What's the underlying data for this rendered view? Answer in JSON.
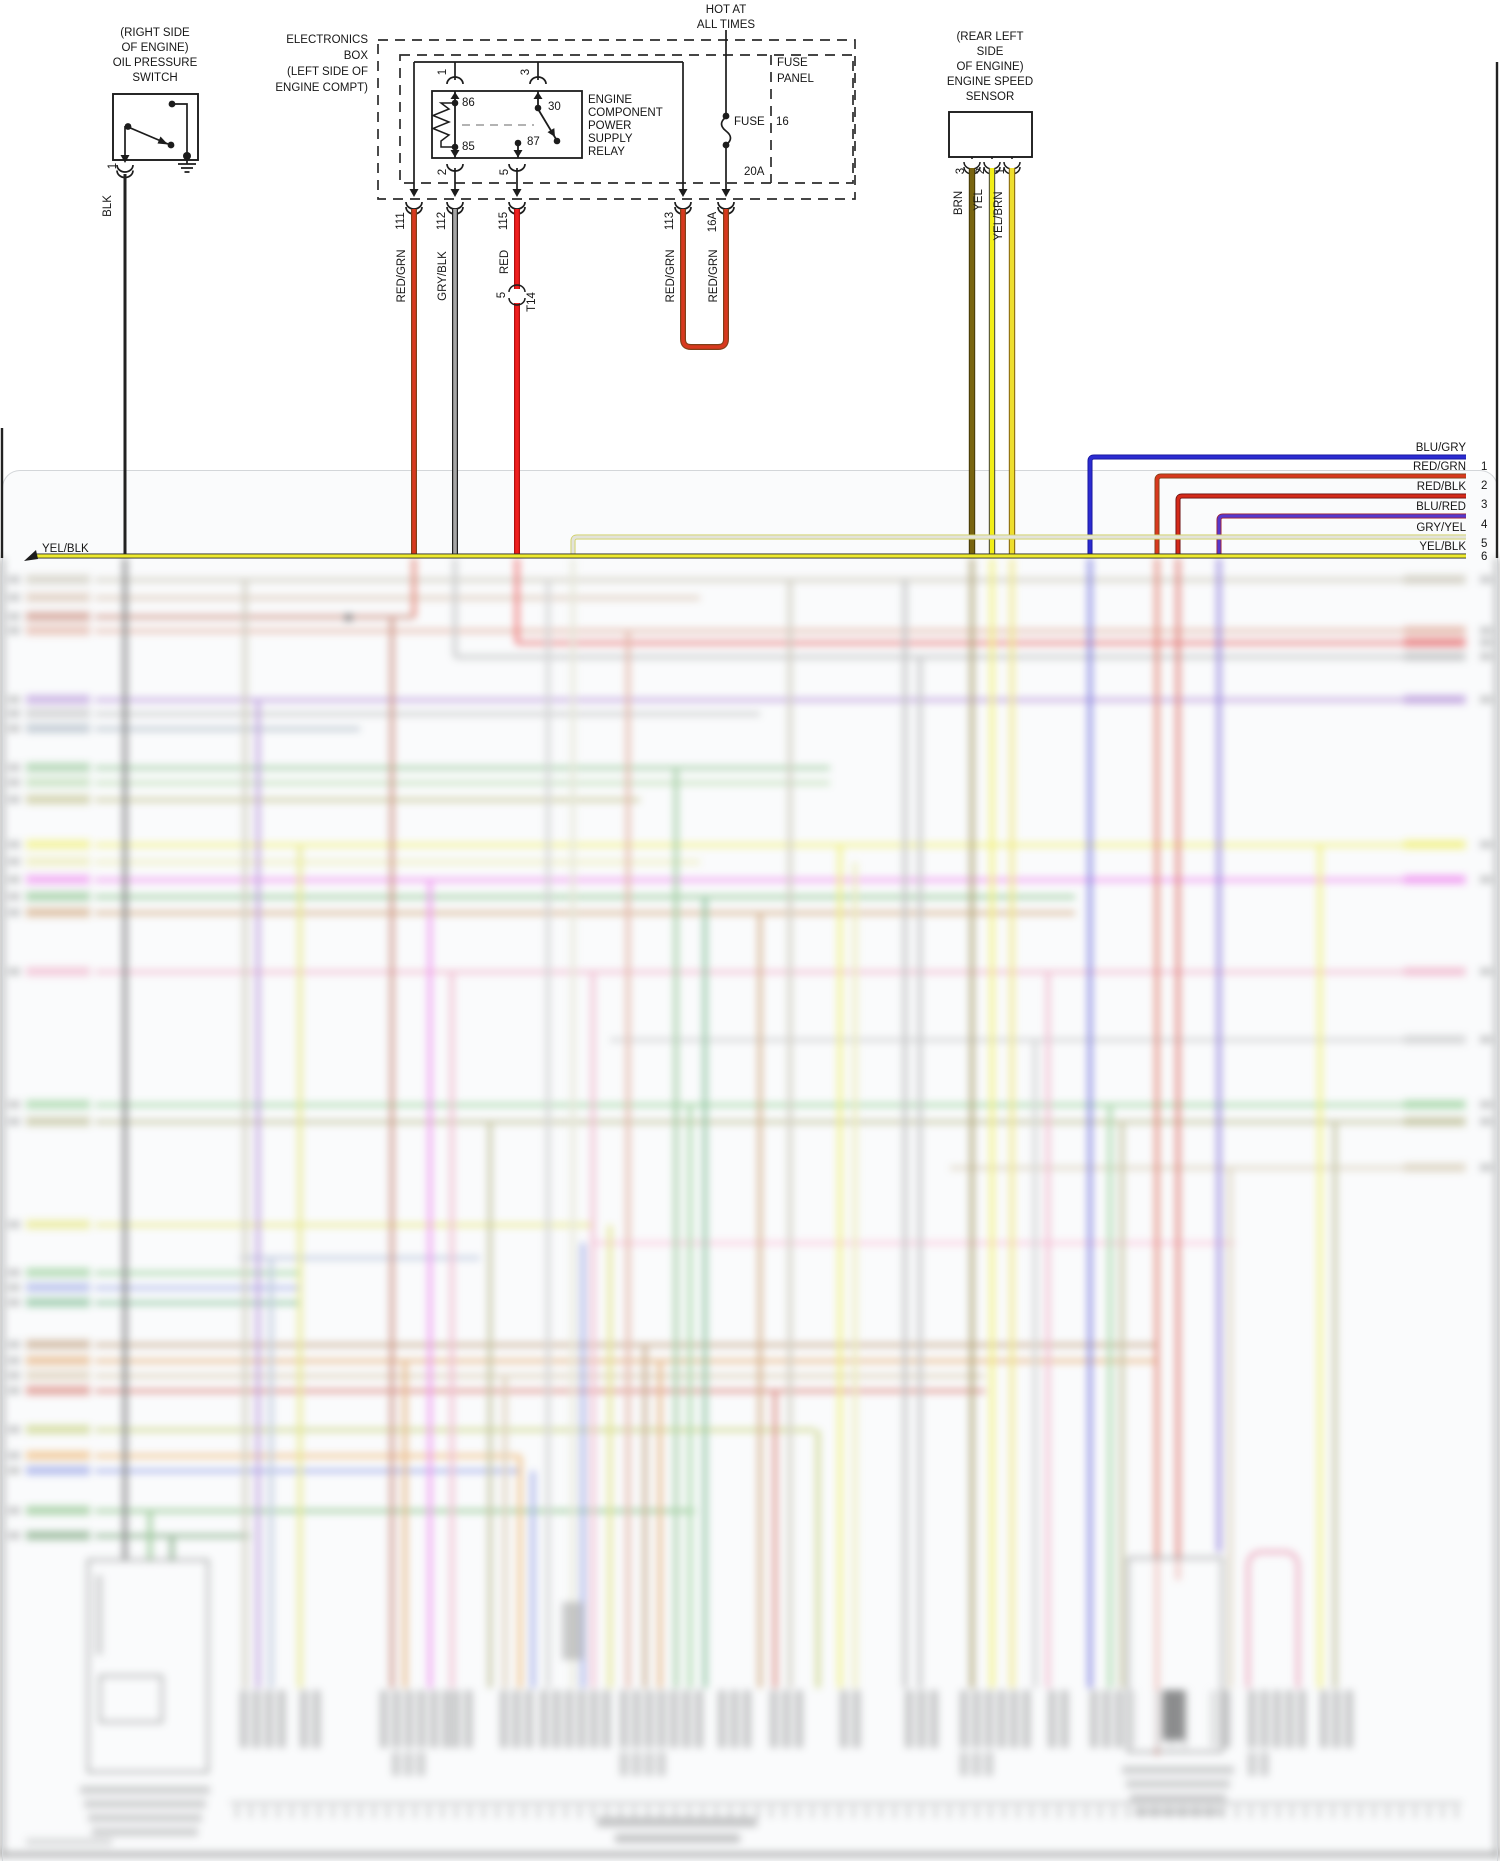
{
  "power": {
    "hot_label": [
      "HOT AT",
      "ALL TIMES"
    ],
    "fuse_label": "FUSE",
    "fuse_number": "16",
    "fuse_rating": "20A",
    "fuse_panel_label": [
      "FUSE",
      "PANEL"
    ]
  },
  "oil_pressure_switch": {
    "title": [
      "(RIGHT SIDE",
      "OF ENGINE)",
      "OIL PRESSURE",
      "SWITCH"
    ],
    "pin": "1",
    "wire": "BLK"
  },
  "electronics_box": {
    "title": [
      "ELECTRONICS",
      "BOX",
      "(LEFT SIDE OF",
      "ENGINE COMPT)"
    ]
  },
  "relay": {
    "title": [
      "ENGINE",
      "COMPONENT",
      "POWER",
      "SUPPLY",
      "RELAY"
    ],
    "pins": {
      "coil_top": "86",
      "coil_bottom": "85",
      "switch_top": "30",
      "switch_bottom": "87"
    },
    "terminals": {
      "top_left": "1",
      "top_right": "3",
      "bottom_left": "2",
      "bottom_right": "5"
    }
  },
  "engine_speed_sensor": {
    "title": [
      "(REAR LEFT",
      "SIDE",
      "OF ENGINE)",
      "ENGINE SPEED",
      "SENSOR"
    ],
    "pins": [
      {
        "num": "3",
        "wire": "BRN"
      },
      {
        "num": "2",
        "wire": "YEL"
      },
      {
        "num": "1",
        "wire": "YEL/BRN"
      }
    ]
  },
  "harness_pins": [
    {
      "num": "111",
      "wire": "RED/GRN"
    },
    {
      "num": "112",
      "wire": "GRY/BLK"
    },
    {
      "num": "115",
      "wire": "RED"
    },
    {
      "num": "113",
      "wire": "RED/GRN"
    },
    {
      "num": "16A",
      "wire": "RED/GRN"
    }
  ],
  "inline_connector": {
    "pin": "5",
    "id": "T14"
  },
  "right_connector_wires": [
    {
      "num": "1",
      "label": "BLU/GRY"
    },
    {
      "num": "2",
      "label": "RED/GRN"
    },
    {
      "num": "3",
      "label": "RED/BLK"
    },
    {
      "num": "4",
      "label": "BLU/RED"
    },
    {
      "num": "5",
      "label": "GRY/YEL"
    },
    {
      "num": "6",
      "label": "YEL/BLK"
    }
  ],
  "left_wire_label": "YEL/BLK",
  "palette": {
    "BLK": "#2a2a2a",
    "RED": "#ef1f1f",
    "RED_GRN": "#d8391e",
    "GRY_BLK": "#a6a6a6",
    "BRN": "#786410",
    "YEL": "#f2ee18",
    "YEL_BRN": "#eede2e",
    "BLU_GRY": "#2b2bd0",
    "RED_BLK": "#d42a1a",
    "BLU_RED": "#5538cc",
    "GRY_YEL": "#dcdcc0",
    "YEL_BLK": "#eeea2e"
  }
}
